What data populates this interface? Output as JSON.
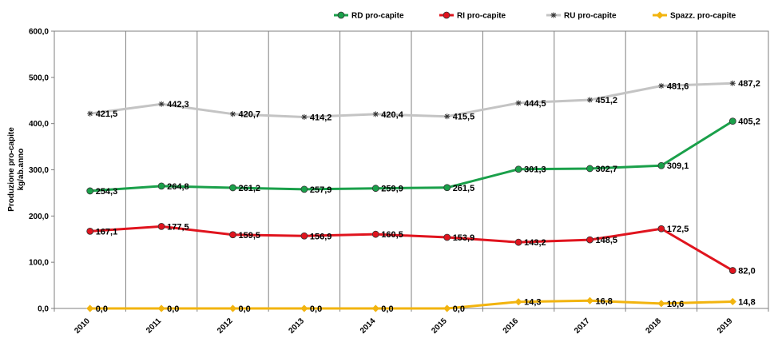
{
  "chart_data": {
    "type": "line",
    "title": "",
    "xlabel": "",
    "ylabel_lines": [
      "Produzione pro-capite",
      "kg/ab.anno"
    ],
    "categories": [
      "2010",
      "2011",
      "2012",
      "2013",
      "2014",
      "2015",
      "2016",
      "2017",
      "2018",
      "2019"
    ],
    "ylim": [
      0,
      600
    ],
    "yticks": [
      "0,0",
      "100,0",
      "200,0",
      "300,0",
      "400,0",
      "500,0",
      "600,0"
    ],
    "ytick_values": [
      0,
      100,
      200,
      300,
      400,
      500,
      600
    ],
    "grid": "vertical",
    "legend_position": "top-right",
    "series": [
      {
        "name": "RD pro-capite",
        "color": "#1aa04a",
        "marker": "circle",
        "values": [
          254.3,
          264.8,
          261.2,
          257.9,
          259.9,
          261.5,
          301.3,
          302.7,
          309.1,
          405.2
        ],
        "labels": [
          "254,3",
          "264,8",
          "261,2",
          "257,9",
          "259,9",
          "261,5",
          "301,3",
          "302,7",
          "309,1",
          "405,2"
        ]
      },
      {
        "name": "RI pro-capite",
        "color": "#e0141e",
        "marker": "circle",
        "values": [
          167.1,
          177.5,
          159.5,
          156.9,
          160.5,
          153.9,
          143.2,
          148.5,
          172.5,
          82.0
        ],
        "labels": [
          "167,1",
          "177,5",
          "159,5",
          "156,9",
          "160,5",
          "153,9",
          "143,2",
          "148,5",
          "172,5",
          "82,0"
        ]
      },
      {
        "name": "RU pro-capite",
        "color": "#c4c4c4",
        "marker": "star",
        "values": [
          421.5,
          442.3,
          420.7,
          414.2,
          420.4,
          415.5,
          444.5,
          451.2,
          481.6,
          487.2
        ],
        "labels": [
          "421,5",
          "442,3",
          "420,7",
          "414,2",
          "420,4",
          "415,5",
          "444,5",
          "451,2",
          "481,6",
          "487,2"
        ]
      },
      {
        "name": "Spazz. pro-capite",
        "color": "#f2b40f",
        "marker": "diamond",
        "values": [
          0.0,
          0.0,
          0.0,
          0.0,
          0.0,
          0.0,
          14.3,
          16.8,
          10.6,
          14.8
        ],
        "labels": [
          "0,0",
          "0,0",
          "0,0",
          "0,0",
          "0,0",
          "0,0",
          "14,3",
          "16,8",
          "10,6",
          "14,8"
        ]
      }
    ]
  }
}
